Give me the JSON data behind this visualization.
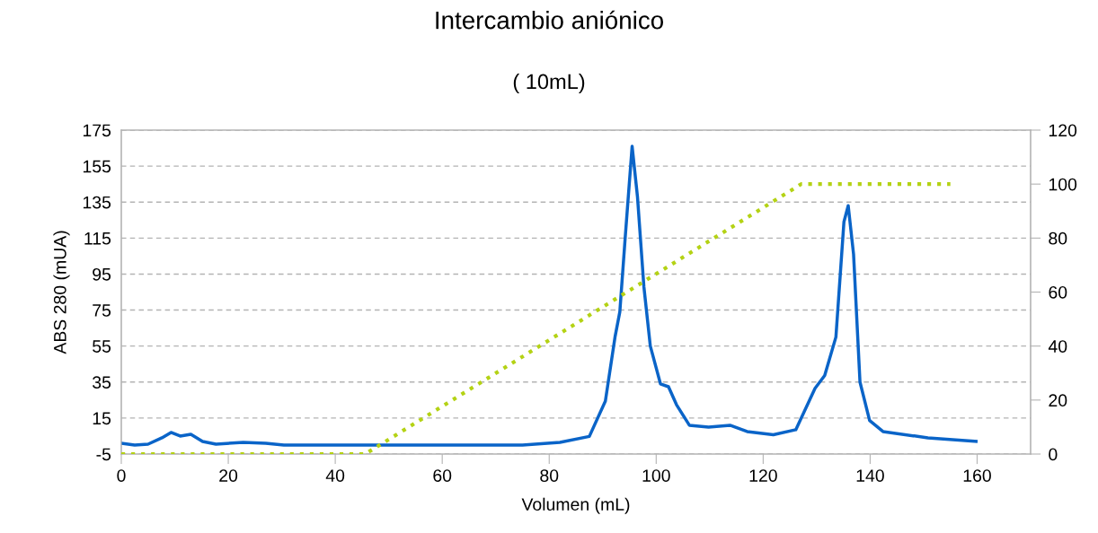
{
  "chart_data": {
    "type": "line",
    "title": "Intercambio aniónico",
    "subtitle": "( 10mL)",
    "xlabel": "Volumen (mL)",
    "ylabel": "ABS 280 (mUA)",
    "xlim": [
      0,
      170
    ],
    "xticks": [
      0,
      20,
      40,
      60,
      80,
      100,
      120,
      140,
      160
    ],
    "ylim": [
      -5,
      175
    ],
    "yticks": [
      -5,
      15,
      35,
      55,
      75,
      95,
      115,
      135,
      155,
      175
    ],
    "y2lim": [
      0,
      120
    ],
    "y2ticks": [
      0,
      20,
      40,
      60,
      80,
      100,
      120
    ],
    "grid": "y",
    "legend": false,
    "series": [
      {
        "color": "#0a64c8",
        "line_style": "solid",
        "x": [
          0,
          2.5,
          5,
          7.6,
          9.3,
          11,
          13,
          15.2,
          17.7,
          22.8,
          27,
          30.4,
          44.7,
          61.6,
          75,
          82,
          87.5,
          90.5,
          92.3,
          93.2,
          94.2,
          95.5,
          96.5,
          97.7,
          98.9,
          100.8,
          102.3,
          103.8,
          106.2,
          109.8,
          113.8,
          117,
          121.9,
          126.1,
          129.7,
          131.5,
          133.6,
          135.1,
          135.9,
          136.9,
          138.1,
          139.9,
          142.4,
          150.8,
          159.8
        ],
        "values": [
          1,
          0,
          0.5,
          4,
          7,
          5,
          6,
          2,
          0.5,
          1.5,
          1,
          0,
          0,
          0,
          0,
          1.5,
          4.8,
          24.4,
          60,
          74,
          115,
          166,
          138,
          88,
          55,
          34,
          32.4,
          22.4,
          11,
          10,
          11,
          7.5,
          5.7,
          8.5,
          31.5,
          38.6,
          60,
          124,
          133,
          106,
          35,
          13.6,
          7.5,
          4,
          2
        ]
      },
      {
        "color": "#b4d214",
        "line_style": "dotted",
        "axis": "y2",
        "x": [
          0,
          45.6,
          127.1,
          155
        ],
        "values": [
          0,
          0,
          100,
          100
        ]
      }
    ]
  }
}
